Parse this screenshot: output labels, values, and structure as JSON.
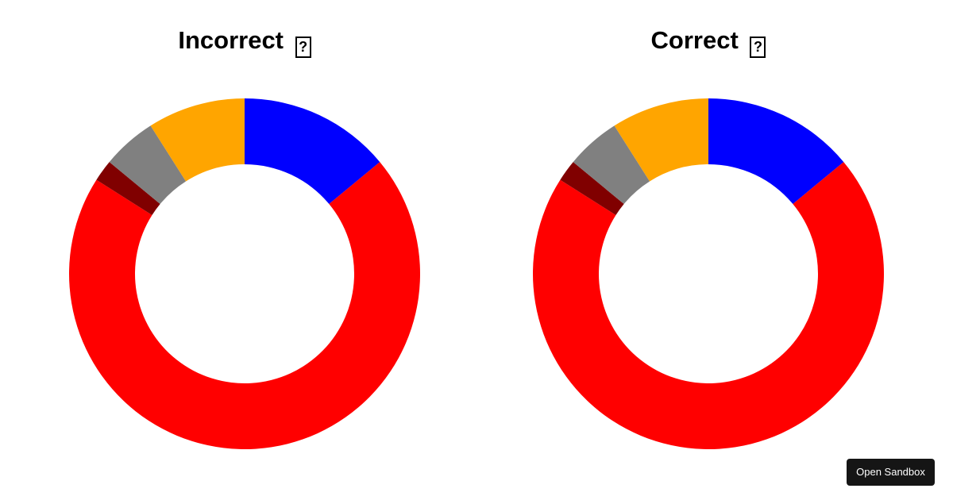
{
  "chart_data": [
    {
      "type": "pie",
      "variant": "donut",
      "title": "Incorrect",
      "title_glyph": "?",
      "slices": [
        {
          "value": 14,
          "color": "#0000ff"
        },
        {
          "value": 70,
          "color": "#ff0000"
        },
        {
          "value": 2,
          "color": "#800000"
        },
        {
          "value": 5,
          "color": "#808080"
        },
        {
          "value": 9,
          "color": "#ffa500"
        }
      ]
    },
    {
      "type": "pie",
      "variant": "donut",
      "title": "Correct",
      "title_glyph": "?",
      "slices": [
        {
          "value": 14,
          "color": "#0000ff"
        },
        {
          "value": 70,
          "color": "#ff0000"
        },
        {
          "value": 2,
          "color": "#800000"
        },
        {
          "value": 5,
          "color": "#808080"
        },
        {
          "value": 9,
          "color": "#ffa500"
        }
      ]
    }
  ],
  "sandbox_button": {
    "label": "Open Sandbox"
  }
}
